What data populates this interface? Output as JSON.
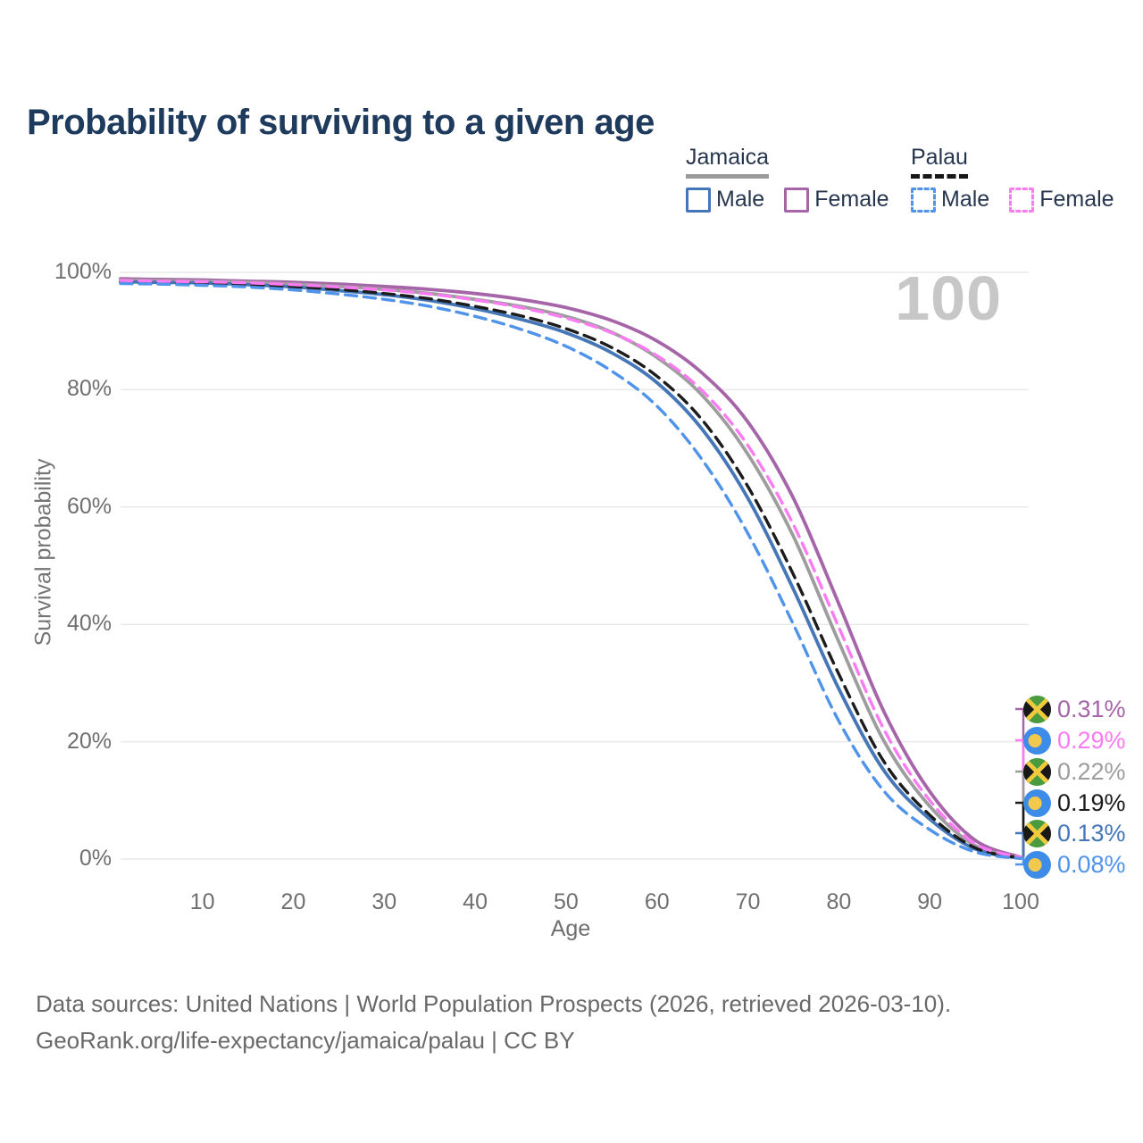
{
  "title": "Probability of surviving to a given age",
  "age_indicator": "100",
  "legend": {
    "jamaica": {
      "title": "Jamaica",
      "male_label": "Male",
      "female_label": "Female"
    },
    "palau": {
      "title": "Palau",
      "male_label": "Male",
      "female_label": "Female"
    }
  },
  "axes": {
    "x_title": "Age",
    "y_title": "Survival probability"
  },
  "chart_data": {
    "type": "line",
    "title": "Probability of surviving to a given age",
    "xlabel": "Age",
    "ylabel": "Survival probability",
    "xlim": [
      1,
      100
    ],
    "ylim": [
      0,
      100
    ],
    "grid": true,
    "legend_position": "top-right",
    "y_ticks": [
      {
        "label": "0%",
        "value": 0
      },
      {
        "label": "20%",
        "value": 20
      },
      {
        "label": "40%",
        "value": 40
      },
      {
        "label": "60%",
        "value": 60
      },
      {
        "label": "80%",
        "value": 80
      },
      {
        "label": "100%",
        "value": 100
      }
    ],
    "x_ticks": [
      {
        "label": "10",
        "value": 10
      },
      {
        "label": "20",
        "value": 20
      },
      {
        "label": "30",
        "value": 30
      },
      {
        "label": "40",
        "value": 40
      },
      {
        "label": "50",
        "value": 50
      },
      {
        "label": "60",
        "value": 60
      },
      {
        "label": "70",
        "value": 70
      },
      {
        "label": "80",
        "value": 80
      },
      {
        "label": "90",
        "value": 90
      },
      {
        "label": "100",
        "value": 100
      }
    ],
    "ages": [
      1,
      5,
      10,
      15,
      20,
      25,
      30,
      35,
      40,
      45,
      50,
      55,
      60,
      65,
      70,
      75,
      80,
      85,
      90,
      95,
      100
    ],
    "series": [
      {
        "name": "Jamaica — Female",
        "country": "Jamaica",
        "sex": "Female",
        "color": "#a565a8",
        "dashed": false,
        "end_label": "0.31%",
        "flag": "jamaica",
        "values": [
          98.9,
          98.8,
          98.7,
          98.5,
          98.3,
          98.0,
          97.6,
          97.1,
          96.4,
          95.4,
          94.0,
          91.8,
          88.3,
          82.8,
          74.5,
          61.5,
          43.5,
          25.0,
          11.5,
          3.2,
          0.31
        ]
      },
      {
        "name": "Palau — Female",
        "country": "Palau",
        "sex": "Female",
        "color": "#fb7bf2",
        "dashed": true,
        "end_label": "0.29%",
        "flag": "palau",
        "values": [
          98.6,
          98.5,
          98.4,
          98.2,
          97.9,
          97.5,
          97.0,
          96.3,
          95.3,
          94.0,
          92.2,
          89.7,
          85.8,
          79.8,
          70.5,
          57.0,
          39.5,
          22.0,
          10.0,
          2.6,
          0.29
        ]
      },
      {
        "name": "Jamaica — Both sexes",
        "country": "Jamaica",
        "sex": "Both",
        "color": "#9d9d9d",
        "dashed": false,
        "end_label": "0.22%",
        "flag": "jamaica",
        "values": [
          98.7,
          98.6,
          98.5,
          98.3,
          98.0,
          97.6,
          97.1,
          96.4,
          95.4,
          94.2,
          92.5,
          89.8,
          85.5,
          79.0,
          69.0,
          55.0,
          37.0,
          20.0,
          9.0,
          2.3,
          0.22
        ]
      },
      {
        "name": "Palau — Both sexes",
        "country": "Palau",
        "sex": "Both",
        "color": "#1c1c1c",
        "dashed": true,
        "end_label": "0.19%",
        "flag": "palau",
        "values": [
          98.4,
          98.3,
          98.2,
          98.0,
          97.6,
          97.1,
          96.4,
          95.5,
          94.2,
          92.6,
          90.4,
          87.2,
          82.3,
          74.8,
          63.5,
          48.5,
          31.5,
          16.5,
          7.5,
          1.9,
          0.19
        ]
      },
      {
        "name": "Jamaica — Male",
        "country": "Jamaica",
        "sex": "Male",
        "color": "#4577b8",
        "dashed": false,
        "end_label": "0.13%",
        "flag": "jamaica",
        "values": [
          98.4,
          98.3,
          98.2,
          97.9,
          97.5,
          96.9,
          96.2,
          95.2,
          93.8,
          92.0,
          89.7,
          86.3,
          81.2,
          73.2,
          61.5,
          46.0,
          29.0,
          15.0,
          6.8,
          1.7,
          0.13
        ]
      },
      {
        "name": "Palau — Male",
        "country": "Palau",
        "sex": "Male",
        "color": "#4f93ea",
        "dashed": true,
        "end_label": "0.08%",
        "flag": "palau",
        "values": [
          98.1,
          98.0,
          97.8,
          97.5,
          97.0,
          96.3,
          95.4,
          94.2,
          92.5,
          90.3,
          87.4,
          83.2,
          77.2,
          68.0,
          55.5,
          40.0,
          23.5,
          11.5,
          5.0,
          1.2,
          0.08
        ]
      }
    ]
  },
  "colors": {
    "grid": "#e9e9e9",
    "title": "#1e3a5c",
    "axis_text": "#6f6f6f",
    "watermark": "#c7c7c7",
    "flag_jamaica": {
      "green": "#4a9b3f",
      "black": "#181818",
      "gold": "#f0c93c"
    },
    "flag_palau": {
      "blue": "#3c8ce8",
      "yellow": "#f2c94c"
    }
  },
  "footer": {
    "line1": "Data sources: United Nations | World Population Prospects (2026, retrieved 2026-03-10).",
    "line2": "GeoRank.org/life-expectancy/jamaica/palau | CC BY"
  }
}
